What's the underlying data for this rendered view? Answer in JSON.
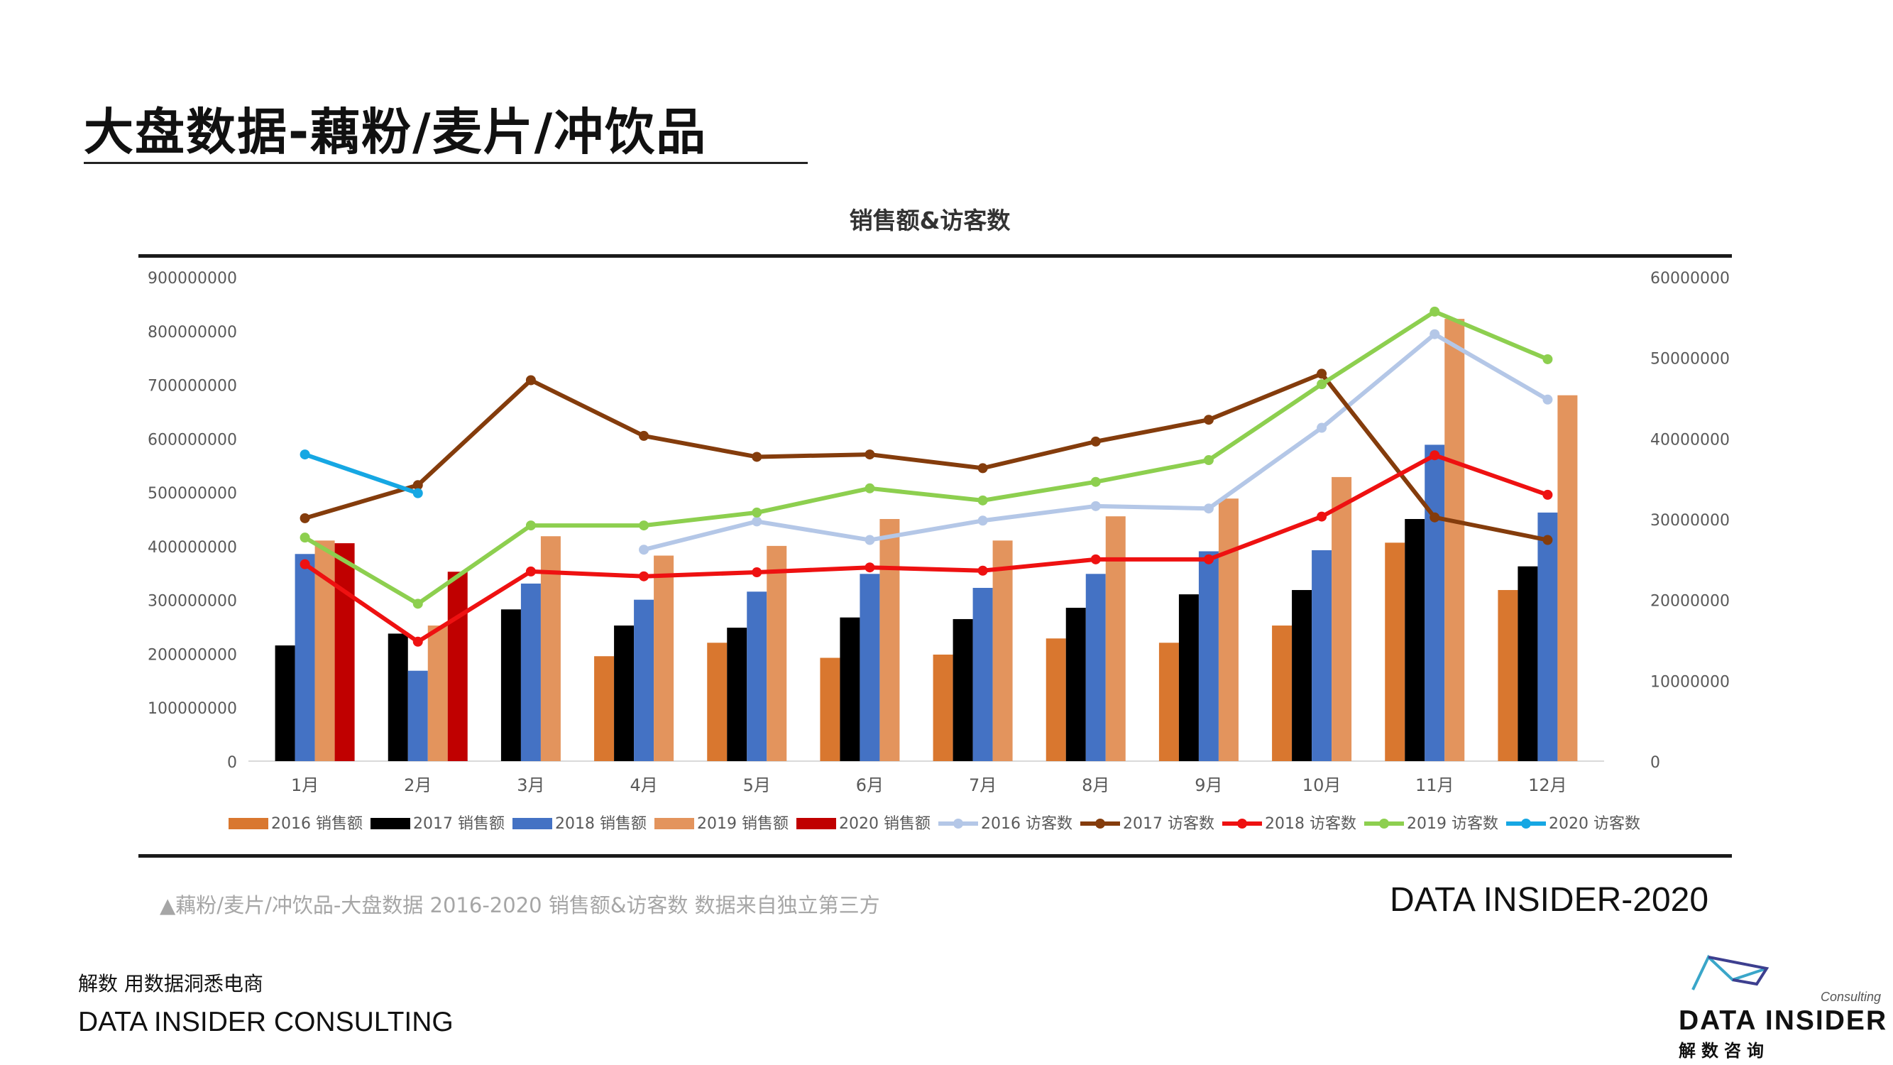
{
  "page": {
    "title": "大盘数据-藕粉/麦片/冲饮品",
    "caption": "▲藕粉/麦片/冲饮品-大盘数据 2016-2020 销售额&访客数 数据来自独立第三方",
    "brand_year": "DATA INSIDER-2020",
    "slogan": "解数 用数据洞悉电商",
    "company": "DATA INSIDER CONSULTING",
    "logo": {
      "word": "DATA INSIDER",
      "sub": "解数咨询",
      "consulting": "Consulting"
    }
  },
  "chart_data": {
    "type": "bar+line",
    "title": "销售额&访客数",
    "categories": [
      "1月",
      "2月",
      "3月",
      "4月",
      "5月",
      "6月",
      "7月",
      "8月",
      "9月",
      "10月",
      "11月",
      "12月"
    ],
    "y_left": {
      "min": 0,
      "max": 900000000,
      "step": 100000000,
      "ticks": [
        "0",
        "100000000",
        "200000000",
        "300000000",
        "400000000",
        "500000000",
        "600000000",
        "700000000",
        "800000000",
        "900000000"
      ]
    },
    "y_right": {
      "min": 0,
      "max": 60000000,
      "step": 10000000,
      "ticks": [
        "0",
        "10000000",
        "20000000",
        "30000000",
        "40000000",
        "50000000",
        "60000000"
      ]
    },
    "bar_series": [
      {
        "name": "2016 销售额",
        "color": "#d9772f",
        "values": [
          null,
          null,
          null,
          195000000,
          220000000,
          192000000,
          198000000,
          228000000,
          220000000,
          252000000,
          406000000,
          318000000
        ]
      },
      {
        "name": "2017 销售额",
        "color": "#000000",
        "values": [
          215000000,
          237000000,
          282000000,
          252000000,
          248000000,
          267000000,
          264000000,
          285000000,
          310000000,
          318000000,
          450000000,
          362000000
        ]
      },
      {
        "name": "2018 销售额",
        "color": "#4472c4",
        "values": [
          385000000,
          168000000,
          330000000,
          300000000,
          315000000,
          348000000,
          322000000,
          348000000,
          390000000,
          392000000,
          588000000,
          462000000
        ]
      },
      {
        "name": "2019 销售额",
        "color": "#e3945d",
        "values": [
          410000000,
          252000000,
          418000000,
          382000000,
          400000000,
          450000000,
          410000000,
          455000000,
          488000000,
          528000000,
          822000000,
          680000000
        ]
      },
      {
        "name": "2020 销售额",
        "color": "#c00000",
        "values": [
          405000000,
          352000000,
          null,
          null,
          null,
          null,
          null,
          null,
          null,
          null,
          null,
          null
        ]
      }
    ],
    "line_series": [
      {
        "name": "2016 访客数",
        "color": "#b4c7e7",
        "values": [
          null,
          null,
          null,
          26200000,
          29700000,
          27400000,
          29800000,
          31600000,
          31300000,
          41300000,
          52900000,
          44800000
        ]
      },
      {
        "name": "2017 访客数",
        "color": "#843c0c",
        "values": [
          30100000,
          34200000,
          47200000,
          40300000,
          37700000,
          38000000,
          36300000,
          39600000,
          42300000,
          48000000,
          30200000,
          27400000
        ]
      },
      {
        "name": "2018 访客数",
        "color": "#ee1111",
        "values": [
          24400000,
          14800000,
          23500000,
          22900000,
          23400000,
          24000000,
          23600000,
          25000000,
          25000000,
          30300000,
          37900000,
          33000000
        ]
      },
      {
        "name": "2019 访客数",
        "color": "#8dcf4f",
        "values": [
          27700000,
          19500000,
          29200000,
          29200000,
          30800000,
          33800000,
          32300000,
          34600000,
          37300000,
          46700000,
          55700000,
          49800000
        ]
      },
      {
        "name": "2020 访客数",
        "color": "#16a7e3",
        "values": [
          38000000,
          33200000,
          null,
          null,
          null,
          null,
          null,
          null,
          null,
          null,
          null,
          null
        ]
      }
    ],
    "legend_position": "bottom",
    "grid": false
  }
}
